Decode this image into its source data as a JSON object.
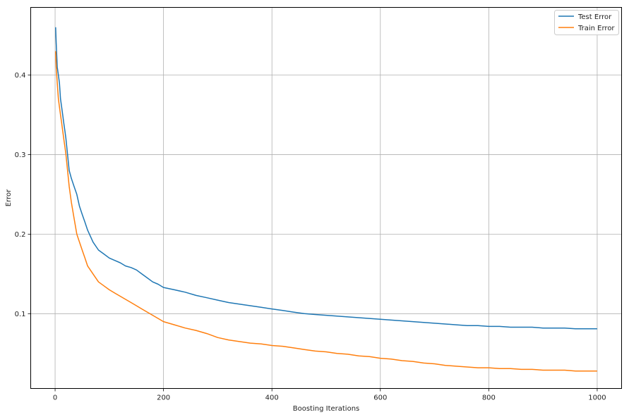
{
  "chart_data": {
    "type": "line",
    "title": "",
    "xlabel": "Boosting Iterations",
    "ylabel": "Error",
    "xlim": [
      -45,
      1045
    ],
    "ylim": [
      0.006,
      0.485
    ],
    "xticks": [
      0,
      200,
      400,
      600,
      800,
      1000
    ],
    "yticks": [
      0.1,
      0.2,
      0.3,
      0.4
    ],
    "grid": true,
    "legend_position": "top-right",
    "series": [
      {
        "name": "Test Error",
        "color": "#1f77b4",
        "x": [
          1,
          2,
          4,
          6,
          8,
          10,
          12,
          14,
          16,
          18,
          20,
          23,
          26,
          30,
          35,
          40,
          45,
          50,
          55,
          60,
          70,
          80,
          90,
          100,
          110,
          120,
          130,
          140,
          150,
          160,
          170,
          180,
          190,
          200,
          220,
          240,
          260,
          280,
          300,
          320,
          340,
          360,
          380,
          400,
          420,
          440,
          460,
          480,
          500,
          520,
          540,
          560,
          580,
          600,
          620,
          640,
          660,
          680,
          700,
          720,
          740,
          760,
          780,
          800,
          820,
          840,
          860,
          880,
          900,
          920,
          940,
          960,
          980,
          1000
        ],
        "values": [
          0.46,
          0.44,
          0.41,
          0.4,
          0.39,
          0.37,
          0.36,
          0.35,
          0.34,
          0.33,
          0.32,
          0.3,
          0.28,
          0.27,
          0.26,
          0.25,
          0.235,
          0.225,
          0.215,
          0.205,
          0.19,
          0.18,
          0.175,
          0.17,
          0.167,
          0.164,
          0.16,
          0.158,
          0.155,
          0.15,
          0.145,
          0.14,
          0.137,
          0.133,
          0.13,
          0.127,
          0.123,
          0.12,
          0.117,
          0.114,
          0.112,
          0.11,
          0.108,
          0.106,
          0.104,
          0.102,
          0.1,
          0.099,
          0.098,
          0.097,
          0.096,
          0.095,
          0.094,
          0.093,
          0.092,
          0.091,
          0.09,
          0.089,
          0.088,
          0.087,
          0.086,
          0.085,
          0.085,
          0.084,
          0.084,
          0.083,
          0.083,
          0.083,
          0.082,
          0.082,
          0.082,
          0.081,
          0.081,
          0.081
        ]
      },
      {
        "name": "Train Error",
        "color": "#ff7f0e",
        "x": [
          1,
          2,
          4,
          6,
          8,
          10,
          12,
          14,
          16,
          18,
          20,
          23,
          26,
          30,
          35,
          40,
          45,
          50,
          55,
          60,
          70,
          80,
          90,
          100,
          110,
          120,
          130,
          140,
          150,
          160,
          170,
          180,
          190,
          200,
          220,
          240,
          260,
          280,
          300,
          320,
          340,
          360,
          380,
          400,
          420,
          440,
          460,
          480,
          500,
          520,
          540,
          560,
          580,
          600,
          620,
          640,
          660,
          680,
          700,
          720,
          740,
          760,
          780,
          800,
          820,
          840,
          860,
          880,
          900,
          920,
          940,
          960,
          980,
          1000
        ],
        "values": [
          0.43,
          0.41,
          0.39,
          0.37,
          0.36,
          0.35,
          0.34,
          0.33,
          0.32,
          0.31,
          0.3,
          0.28,
          0.26,
          0.24,
          0.22,
          0.2,
          0.19,
          0.18,
          0.17,
          0.16,
          0.15,
          0.14,
          0.135,
          0.13,
          0.126,
          0.122,
          0.118,
          0.114,
          0.11,
          0.106,
          0.102,
          0.098,
          0.094,
          0.09,
          0.086,
          0.082,
          0.079,
          0.075,
          0.07,
          0.067,
          0.065,
          0.063,
          0.062,
          0.06,
          0.059,
          0.057,
          0.055,
          0.053,
          0.052,
          0.05,
          0.049,
          0.047,
          0.046,
          0.044,
          0.043,
          0.041,
          0.04,
          0.038,
          0.037,
          0.035,
          0.034,
          0.033,
          0.032,
          0.032,
          0.031,
          0.031,
          0.03,
          0.03,
          0.029,
          0.029,
          0.029,
          0.028,
          0.028,
          0.028
        ]
      }
    ]
  }
}
